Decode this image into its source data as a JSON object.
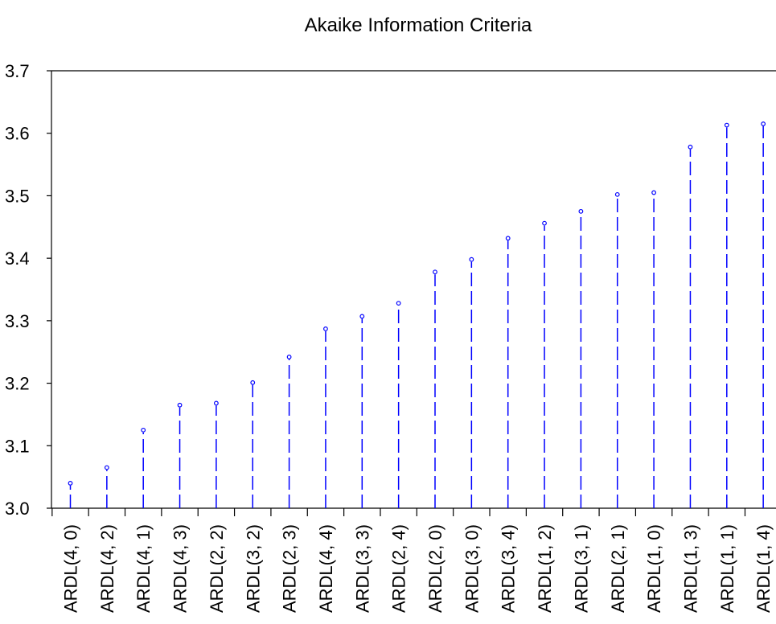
{
  "chart_data": {
    "type": "scatter",
    "title": "Akaike Information Criteria",
    "xlabel": "",
    "ylabel": "",
    "ylim": [
      3.0,
      3.7
    ],
    "yticks": [
      "3.0",
      "3.1",
      "3.2",
      "3.3",
      "3.4",
      "3.5",
      "3.6",
      "3.7"
    ],
    "categories": [
      "ARDL(4, 0)",
      "ARDL(4, 2)",
      "ARDL(4, 1)",
      "ARDL(4, 3)",
      "ARDL(2, 2)",
      "ARDL(3, 2)",
      "ARDL(2, 3)",
      "ARDL(4, 4)",
      "ARDL(3, 3)",
      "ARDL(2, 4)",
      "ARDL(2, 0)",
      "ARDL(3, 0)",
      "ARDL(3, 4)",
      "ARDL(1, 2)",
      "ARDL(3, 1)",
      "ARDL(2, 1)",
      "ARDL(1, 0)",
      "ARDL(1, 3)",
      "ARDL(1, 1)",
      "ARDL(1, 4)"
    ],
    "values": [
      3.04,
      3.065,
      3.125,
      3.165,
      3.168,
      3.201,
      3.242,
      3.287,
      3.307,
      3.328,
      3.378,
      3.398,
      3.432,
      3.456,
      3.475,
      3.502,
      3.505,
      3.578,
      3.613,
      3.615
    ],
    "grid": false,
    "color": "#0000ff"
  }
}
